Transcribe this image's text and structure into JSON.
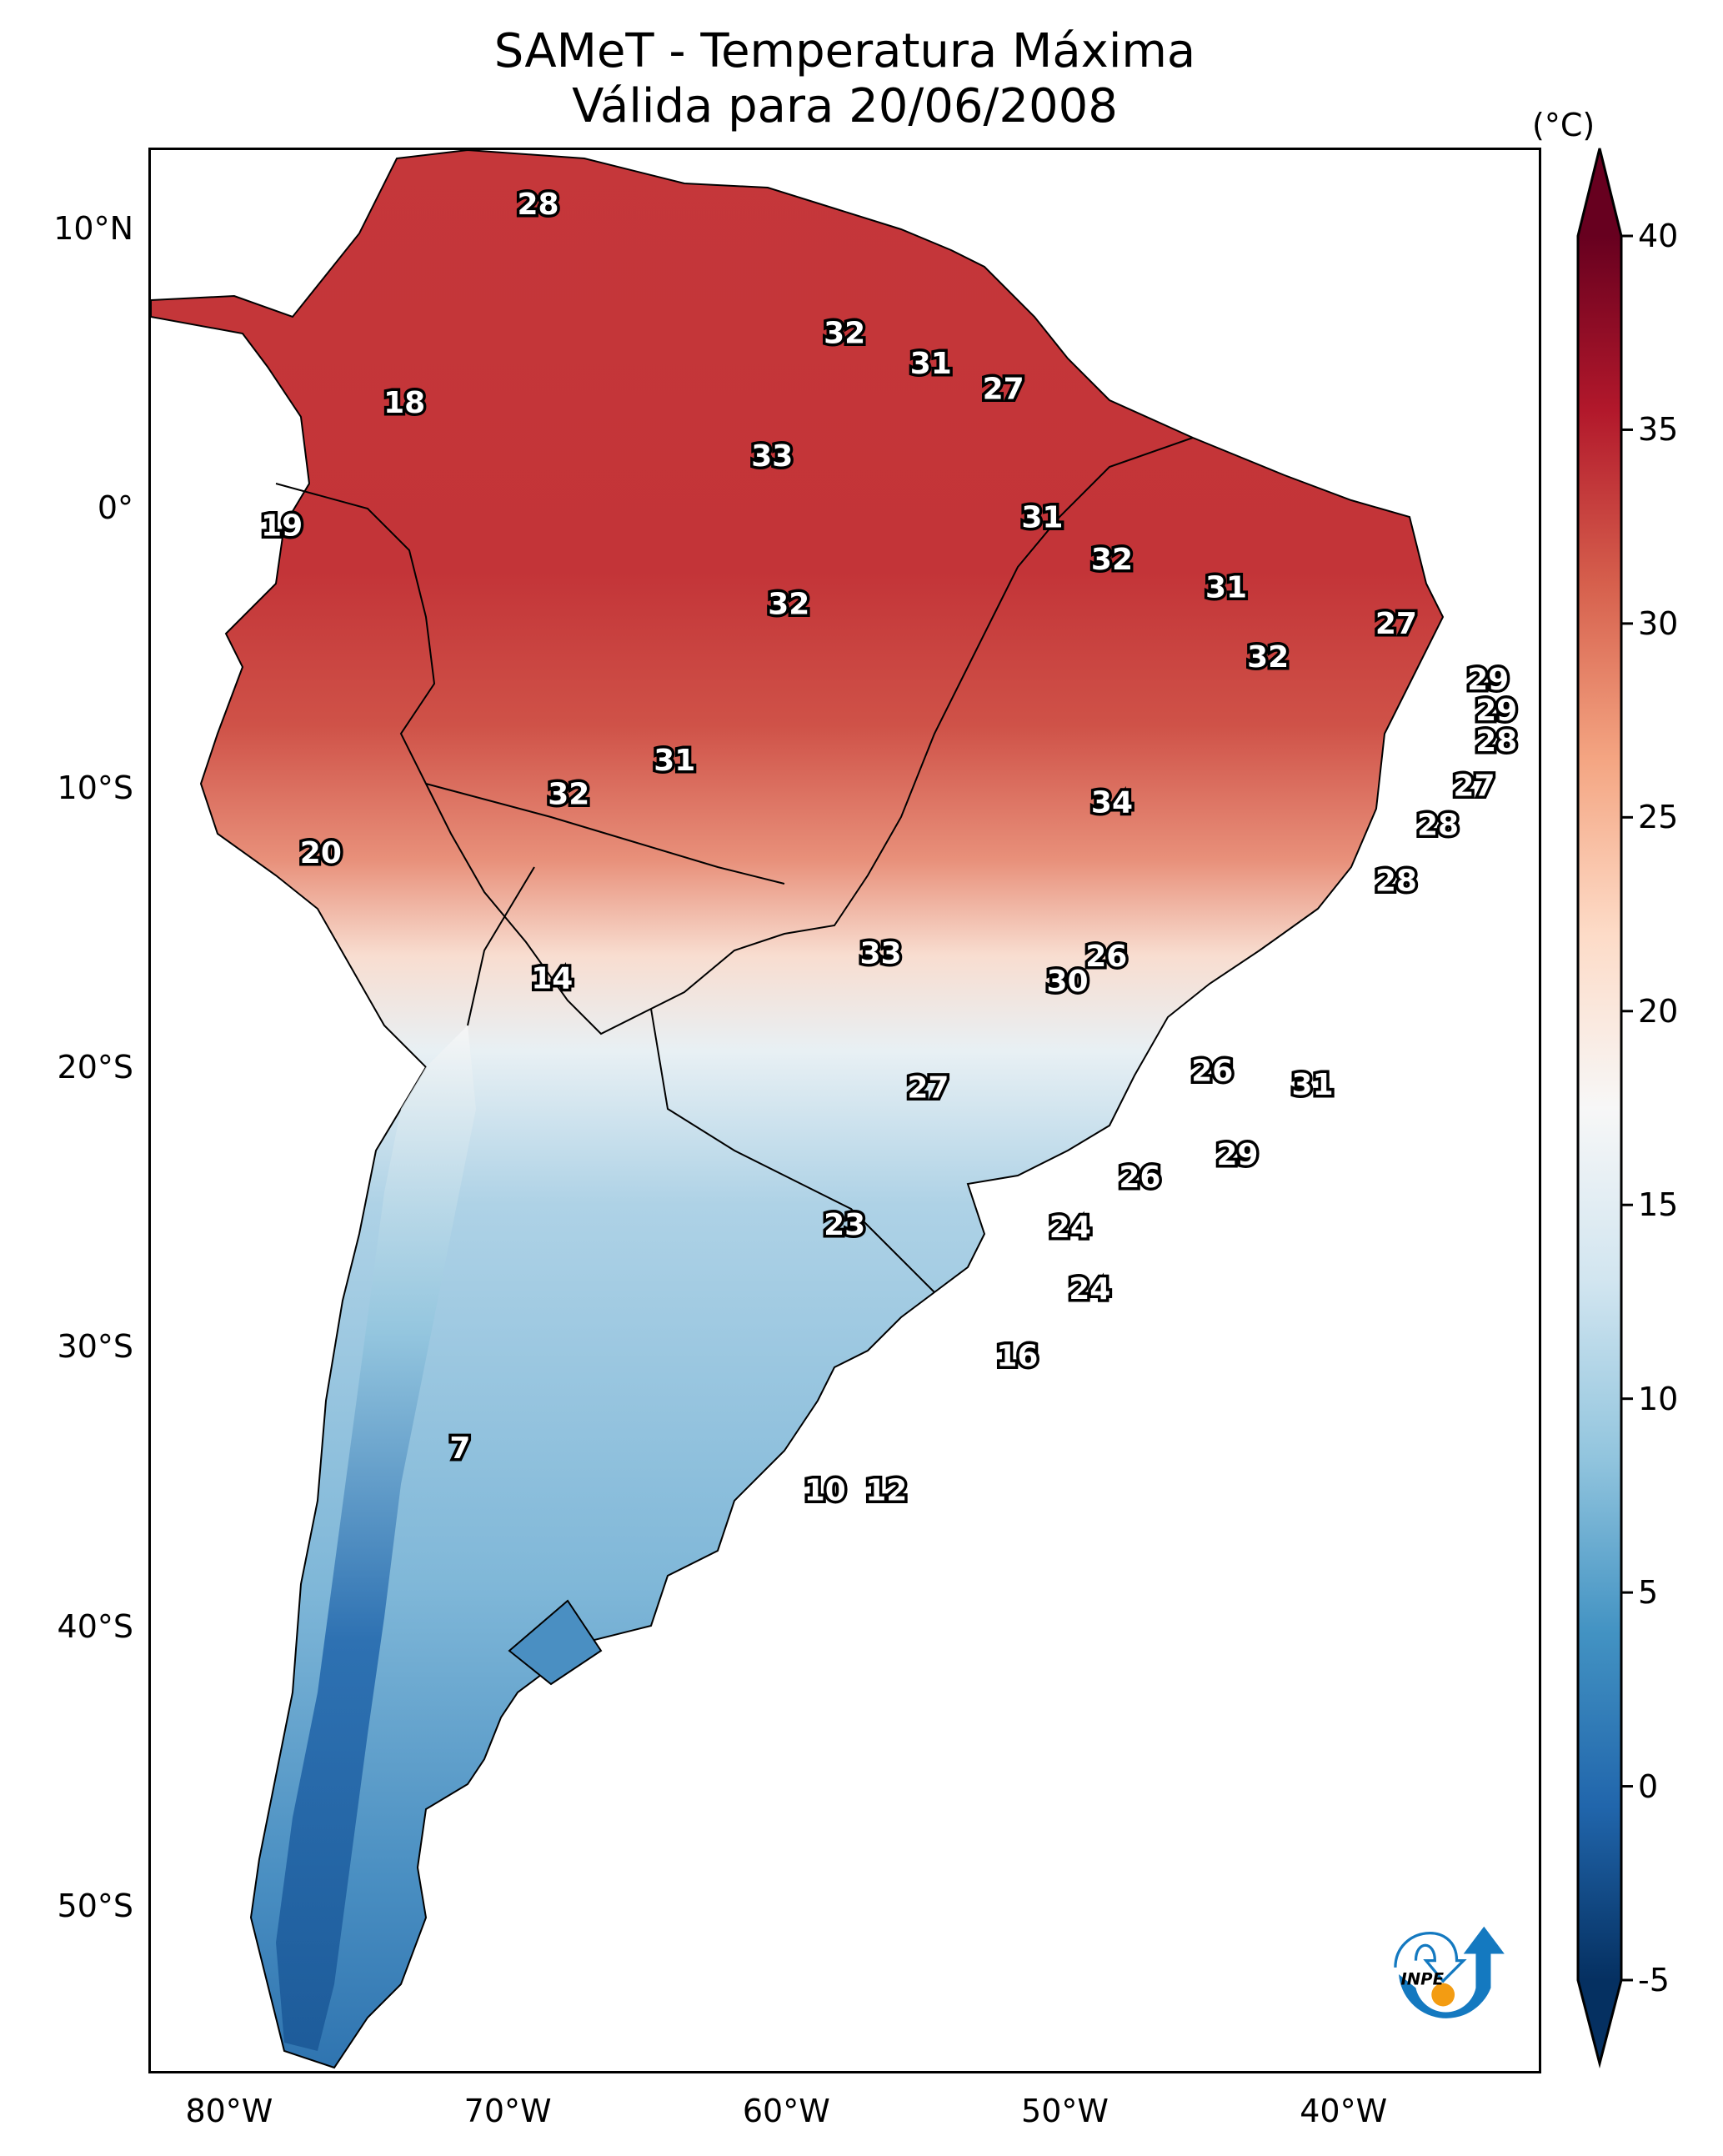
{
  "title": {
    "line1": "SAMeT - Temperatura Máxima",
    "line2": "Válida para 20/06/2008"
  },
  "logo": {
    "text": "INPE",
    "icon": "inpe-logo-icon",
    "blue": "#1479c0",
    "orange": "#f39c12"
  },
  "chart_data": {
    "type": "heatmap",
    "title": "SAMeT - Temperatura Máxima — Válida para 20/06/2008",
    "xlabel": "",
    "ylabel": "",
    "xlim": [
      -82.9,
      -32.9
    ],
    "ylim": [
      -56.0,
      12.9
    ],
    "x_ticks": [
      {
        "value": -80,
        "label": "80°W"
      },
      {
        "value": -70,
        "label": "70°W"
      },
      {
        "value": -60,
        "label": "60°W"
      },
      {
        "value": -50,
        "label": "50°W"
      },
      {
        "value": -40,
        "label": "40°W"
      }
    ],
    "y_ticks": [
      {
        "value": 10,
        "label": "10°N"
      },
      {
        "value": 0,
        "label": "0°"
      },
      {
        "value": -10,
        "label": "10°S"
      },
      {
        "value": -20,
        "label": "20°S"
      },
      {
        "value": -30,
        "label": "30°S"
      },
      {
        "value": -40,
        "label": "40°S"
      },
      {
        "value": -50,
        "label": "50°S"
      }
    ],
    "colorbar": {
      "label": "(°C)",
      "min": -5,
      "max": 40,
      "extend": "both",
      "ticks": [
        40,
        35,
        30,
        25,
        20,
        15,
        10,
        5,
        0,
        -5
      ],
      "tick_labels": [
        "40",
        "35",
        "30",
        "25",
        "20",
        "15",
        "10",
        "5",
        "0",
        "-5"
      ],
      "colormap": "RdBu_r",
      "stops": [
        "#053061",
        "#2166ac",
        "#4393c3",
        "#92c5de",
        "#d1e5f0",
        "#f7f7f7",
        "#fddbc7",
        "#f4a582",
        "#d6604d",
        "#b2182b",
        "#67001f"
      ]
    },
    "station_labels": [
      {
        "lon": -69.0,
        "lat": 10.9,
        "value": "28"
      },
      {
        "lon": -58.0,
        "lat": 6.3,
        "value": "32"
      },
      {
        "lon": -54.9,
        "lat": 5.2,
        "value": "31"
      },
      {
        "lon": -52.3,
        "lat": 4.3,
        "value": "27"
      },
      {
        "lon": -73.8,
        "lat": 3.8,
        "value": "18"
      },
      {
        "lon": -60.6,
        "lat": 1.9,
        "value": "33"
      },
      {
        "lon": -78.2,
        "lat": -0.6,
        "value": "19"
      },
      {
        "lon": -50.9,
        "lat": -0.3,
        "value": "31"
      },
      {
        "lon": -48.4,
        "lat": -1.8,
        "value": "32"
      },
      {
        "lon": -44.3,
        "lat": -2.8,
        "value": "31"
      },
      {
        "lon": -60.0,
        "lat": -3.4,
        "value": "32"
      },
      {
        "lon": -38.2,
        "lat": -4.1,
        "value": "27"
      },
      {
        "lon": -42.8,
        "lat": -5.3,
        "value": "32"
      },
      {
        "lon": -34.9,
        "lat": -6.1,
        "value": "29"
      },
      {
        "lon": -34.6,
        "lat": -7.2,
        "value": "29"
      },
      {
        "lon": -34.6,
        "lat": -8.3,
        "value": "28"
      },
      {
        "lon": -64.1,
        "lat": -9.0,
        "value": "31"
      },
      {
        "lon": -35.4,
        "lat": -9.9,
        "value": "27"
      },
      {
        "lon": -67.9,
        "lat": -10.2,
        "value": "32"
      },
      {
        "lon": -48.4,
        "lat": -10.5,
        "value": "34"
      },
      {
        "lon": -36.7,
        "lat": -11.3,
        "value": "28"
      },
      {
        "lon": -76.8,
        "lat": -12.3,
        "value": "20"
      },
      {
        "lon": -38.2,
        "lat": -13.3,
        "value": "28"
      },
      {
        "lon": -68.5,
        "lat": -16.8,
        "value": "14"
      },
      {
        "lon": -56.7,
        "lat": -15.9,
        "value": "33"
      },
      {
        "lon": -48.6,
        "lat": -16.0,
        "value": "26"
      },
      {
        "lon": -50.0,
        "lat": -16.9,
        "value": "30"
      },
      {
        "lon": -44.8,
        "lat": -20.1,
        "value": "26"
      },
      {
        "lon": -55.0,
        "lat": -20.7,
        "value": "27"
      },
      {
        "lon": -41.2,
        "lat": -20.6,
        "value": "31"
      },
      {
        "lon": -43.9,
        "lat": -23.1,
        "value": "29"
      },
      {
        "lon": -47.4,
        "lat": -23.9,
        "value": "26"
      },
      {
        "lon": -58.0,
        "lat": -25.6,
        "value": "23"
      },
      {
        "lon": -49.9,
        "lat": -25.7,
        "value": "24"
      },
      {
        "lon": -49.2,
        "lat": -27.9,
        "value": "24"
      },
      {
        "lon": -51.8,
        "lat": -30.3,
        "value": "16"
      },
      {
        "lon": -71.8,
        "lat": -33.6,
        "value": "7"
      },
      {
        "lon": -58.7,
        "lat": -35.1,
        "value": "10"
      },
      {
        "lon": -56.5,
        "lat": -35.1,
        "value": "12"
      }
    ]
  }
}
